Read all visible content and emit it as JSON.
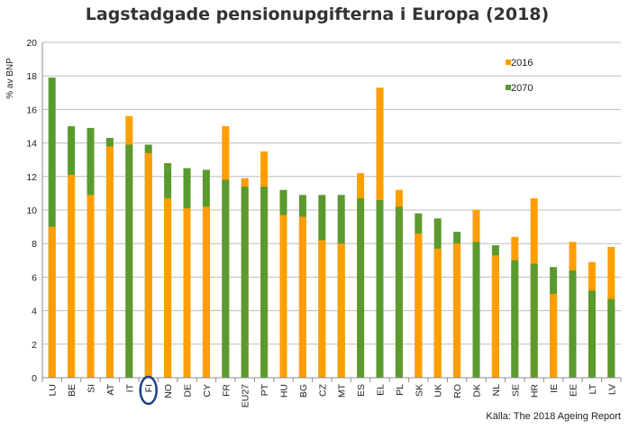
{
  "chart_data": {
    "type": "bar",
    "title": "Lagstadgade pensionupgifterna i Europa (2018)",
    "xlabel": "",
    "ylabel": "% av BNP",
    "ylim": [
      0,
      20
    ],
    "yticks": [
      0,
      2,
      4,
      6,
      8,
      10,
      12,
      14,
      16,
      18,
      20
    ],
    "grid": true,
    "legend_position": "top-right",
    "highlighted_category": "FI",
    "source": "Källa: The 2018 Ageing Report",
    "categories": [
      "LU",
      "BE",
      "SI",
      "AT",
      "IT",
      "FI",
      "NO",
      "DE",
      "CY",
      "FR",
      "EU27",
      "PT",
      "HU",
      "BG",
      "CZ",
      "MT",
      "ES",
      "EL",
      "PL",
      "SK",
      "UK",
      "RO",
      "DK",
      "NL",
      "SE",
      "HR",
      "IE",
      "EE",
      "LT",
      "LV"
    ],
    "series": [
      {
        "name": "2016",
        "color": "#FF9E00",
        "values": [
          9.0,
          12.1,
          10.9,
          13.8,
          15.6,
          13.4,
          10.7,
          10.1,
          10.2,
          15.0,
          11.9,
          13.5,
          9.7,
          9.6,
          8.2,
          8.0,
          12.2,
          17.3,
          11.2,
          8.6,
          7.7,
          8.0,
          10.0,
          7.3,
          8.4,
          10.7,
          5.0,
          8.1,
          6.9,
          7.8
        ]
      },
      {
        "name": "2070",
        "color": "#5A9A2E",
        "values": [
          17.9,
          15.0,
          14.9,
          14.3,
          13.9,
          13.9,
          12.8,
          12.5,
          12.4,
          11.8,
          11.4,
          11.4,
          11.2,
          10.9,
          10.9,
          10.9,
          10.7,
          10.6,
          10.2,
          9.8,
          9.5,
          8.7,
          8.1,
          7.9,
          7.0,
          6.8,
          6.6,
          6.4,
          5.2,
          4.7
        ]
      }
    ]
  }
}
